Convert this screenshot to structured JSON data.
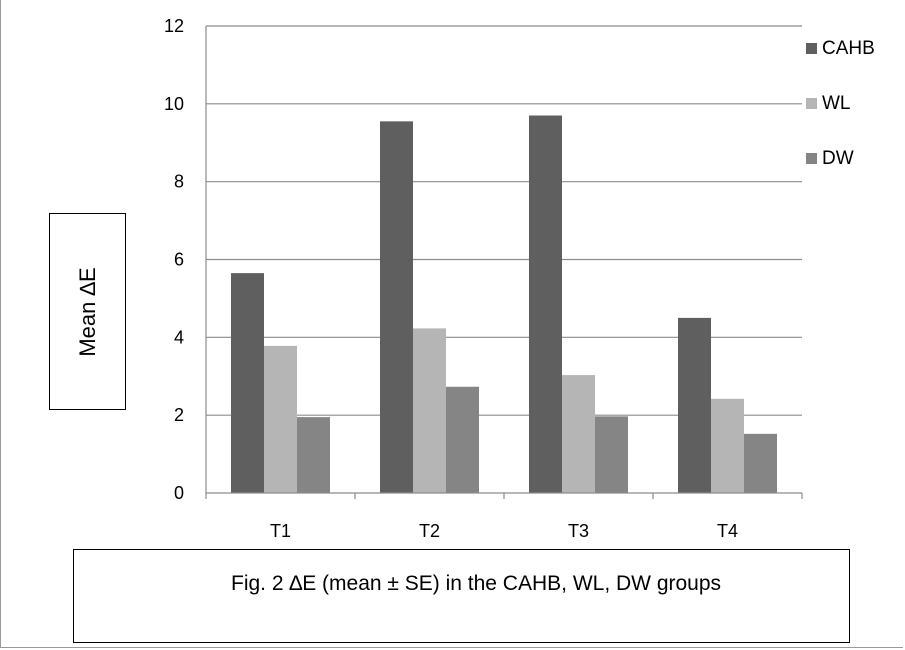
{
  "chart_data": {
    "type": "bar",
    "title": "",
    "xlabel": "",
    "ylabel": "Mean ∆E",
    "ylim": [
      0,
      12
    ],
    "yticks": [
      0,
      2,
      4,
      6,
      8,
      10,
      12
    ],
    "grid": true,
    "legend_position": "right",
    "categories": [
      "T1",
      "T2",
      "T3",
      "T4"
    ],
    "series": [
      {
        "name": "CAHB",
        "color": "#5f5f5f",
        "values": [
          5.65,
          9.55,
          9.7,
          4.5
        ]
      },
      {
        "name": "WL",
        "color": "#b5b5b5",
        "values": [
          3.78,
          4.23,
          3.03,
          2.42
        ]
      },
      {
        "name": "DW",
        "color": "#858585",
        "values": [
          1.95,
          2.73,
          1.97,
          1.52
        ]
      }
    ]
  },
  "caption": "Fig. 2 ∆E (mean ± SE) in the CAHB, WL, DW groups"
}
